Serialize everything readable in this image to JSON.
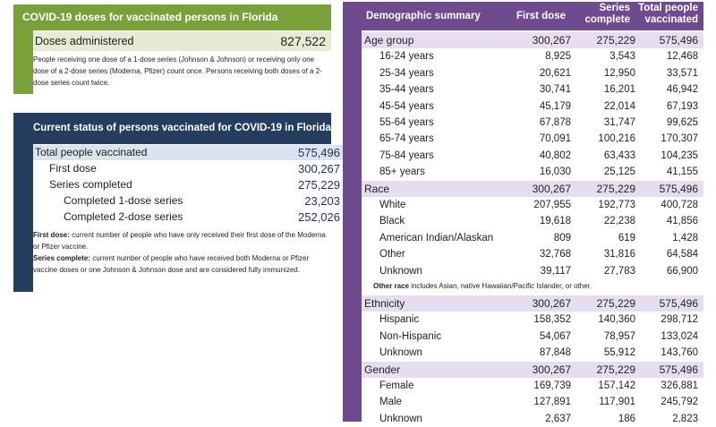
{
  "doses": {
    "title": "COVID-19 doses for vaccinated persons in Florida",
    "row_label": "Doses administered",
    "row_value": "827,522",
    "note": "People receiving one dose of a 1-dose series (Johnson & Johnson) or receiving only one dose of a 2-dose series (Moderna, Pfizer) count once. Persons receiving both doses of a 2-dose series count twice.",
    "accent": "#78a13a"
  },
  "status": {
    "title": "Current status of persons vaccinated for COVID-19 in Florida",
    "rows": [
      {
        "label": "Total people vaccinated",
        "value": "575,496"
      },
      {
        "label": "First dose",
        "value": "300,267"
      },
      {
        "label": "Series completed",
        "value": "275,229"
      },
      {
        "label": "Completed 1-dose series",
        "value": "23,203"
      },
      {
        "label": "Completed 2-dose series",
        "value": "252,026"
      }
    ],
    "note1_term": "First dose:",
    "note1_text": " current number of people who have only received their first dose of the Moderna or Pfizer vaccine.",
    "note2_term": "Series complete:",
    "note2_text": " current number of people who have received both Moderna or Pfizer vaccine doses or one Johnson & Johnson dose and are considered fully immunized.",
    "accent": "#263e5e"
  },
  "demo": {
    "headers": {
      "label": "Demographic summary",
      "c1": "First dose",
      "c2a": "Series",
      "c2b": "complete",
      "c3a": "Total people",
      "c3b": "vaccinated"
    },
    "rows": [
      {
        "label": "Age group",
        "c1": "300,267",
        "c2": "275,229",
        "c3": "575,496",
        "section": true
      },
      {
        "label": "16-24 years",
        "c1": "8,925",
        "c2": "3,543",
        "c3": "12,468"
      },
      {
        "label": "25-34 years",
        "c1": "20,621",
        "c2": "12,950",
        "c3": "33,571"
      },
      {
        "label": "35-44 years",
        "c1": "30,741",
        "c2": "16,201",
        "c3": "46,942"
      },
      {
        "label": "45-54 years",
        "c1": "45,179",
        "c2": "22,014",
        "c3": "67,193"
      },
      {
        "label": "55-64 years",
        "c1": "67,878",
        "c2": "31,747",
        "c3": "99,625"
      },
      {
        "label": "65-74 years",
        "c1": "70,091",
        "c2": "100,216",
        "c3": "170,307"
      },
      {
        "label": "75-84 years",
        "c1": "40,802",
        "c2": "63,433",
        "c3": "104,235"
      },
      {
        "label": "85+ years",
        "c1": "16,030",
        "c2": "25,125",
        "c3": "41,155"
      },
      {
        "label": "Race",
        "c1": "300,267",
        "c2": "275,229",
        "c3": "575,496",
        "section": true
      },
      {
        "label": "White",
        "c1": "207,955",
        "c2": "192,773",
        "c3": "400,728"
      },
      {
        "label": "Black",
        "c1": "19,618",
        "c2": "22,238",
        "c3": "41,856"
      },
      {
        "label": "American Indian/Alaskan",
        "c1": "809",
        "c2": "619",
        "c3": "1,428"
      },
      {
        "label": "Other",
        "c1": "32,768",
        "c2": "31,816",
        "c3": "64,584"
      },
      {
        "label": "Unknown",
        "c1": "39,117",
        "c2": "27,783",
        "c3": "66,900"
      },
      {
        "label": "Ethnicity",
        "c1": "300,267",
        "c2": "275,229",
        "c3": "575,496",
        "section": true
      },
      {
        "label": "Hispanic",
        "c1": "158,352",
        "c2": "140,360",
        "c3": "298,712"
      },
      {
        "label": "Non-Hispanic",
        "c1": "54,067",
        "c2": "78,957",
        "c3": "133,024"
      },
      {
        "label": "Unknown",
        "c1": "87,848",
        "c2": "55,912",
        "c3": "143,760"
      },
      {
        "label": "Gender",
        "c1": "300,267",
        "c2": "275,229",
        "c3": "575,496",
        "section": true
      },
      {
        "label": "Female",
        "c1": "169,739",
        "c2": "157,142",
        "c3": "326,881"
      },
      {
        "label": "Male",
        "c1": "127,891",
        "c2": "117,901",
        "c3": "245,792"
      },
      {
        "label": "Unknown",
        "c1": "2,637",
        "c2": "186",
        "c3": "2,823"
      }
    ],
    "race_note_term": "Other race",
    "race_note_text": " includes Asian, native Hawaiian/Pacific Islander, or other.",
    "accent": "#6f4a8e"
  }
}
